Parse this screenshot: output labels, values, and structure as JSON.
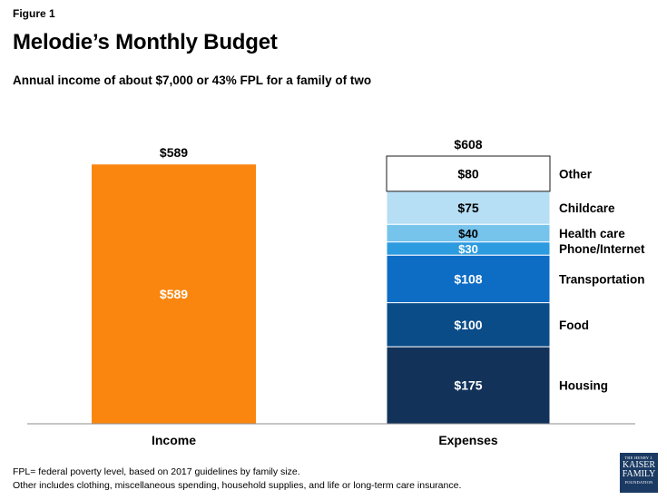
{
  "figure_label": "Figure 1",
  "title": "Melodie’s Monthly Budget",
  "subtitle": "Annual income of about $7,000 or 43% FPL for a family of two",
  "footnotes": [
    "FPL= federal poverty level, based on 2017 guidelines by family size.",
    "Other includes clothing, miscellaneous spending, household  supplies, and life or long-term care insurance."
  ],
  "logo": {
    "line1": "THE HENRY J.",
    "line2": "KAISER",
    "line3": "FAMILY",
    "line4": "FOUNDATION"
  },
  "chart_data": {
    "type": "bar",
    "stacked": true,
    "categories": [
      "Income",
      "Expenses"
    ],
    "totals": [
      {
        "category": "Income",
        "label": "$589"
      },
      {
        "category": "Expenses",
        "label": "$608"
      }
    ],
    "series": [
      {
        "name": "Income",
        "category": "Income",
        "value": 589,
        "label": "$589",
        "color": "#fa860f"
      },
      {
        "name": "Housing",
        "category": "Expenses",
        "value": 175,
        "label": "$175",
        "color": "#12325a"
      },
      {
        "name": "Food",
        "category": "Expenses",
        "value": 100,
        "label": "$100",
        "color": "#0a4c87"
      },
      {
        "name": "Transportation",
        "category": "Expenses",
        "value": 108,
        "label": "$108",
        "color": "#0d6cc4"
      },
      {
        "name": "Phone/Internet",
        "category": "Expenses",
        "value": 30,
        "label": "$30",
        "color": "#2d9be0"
      },
      {
        "name": "Health care",
        "category": "Expenses",
        "value": 40,
        "label": "$40",
        "color": "#76c3ec"
      },
      {
        "name": "Childcare",
        "category": "Expenses",
        "value": 75,
        "label": "$75",
        "color": "#b6def5"
      },
      {
        "name": "Other",
        "category": "Expenses",
        "value": 80,
        "label": "$80",
        "color": "#ffffff"
      }
    ],
    "ylim": [
      0,
      608
    ],
    "grid": false,
    "legend": "right of stacked bar",
    "xlabel": "",
    "ylabel": ""
  }
}
